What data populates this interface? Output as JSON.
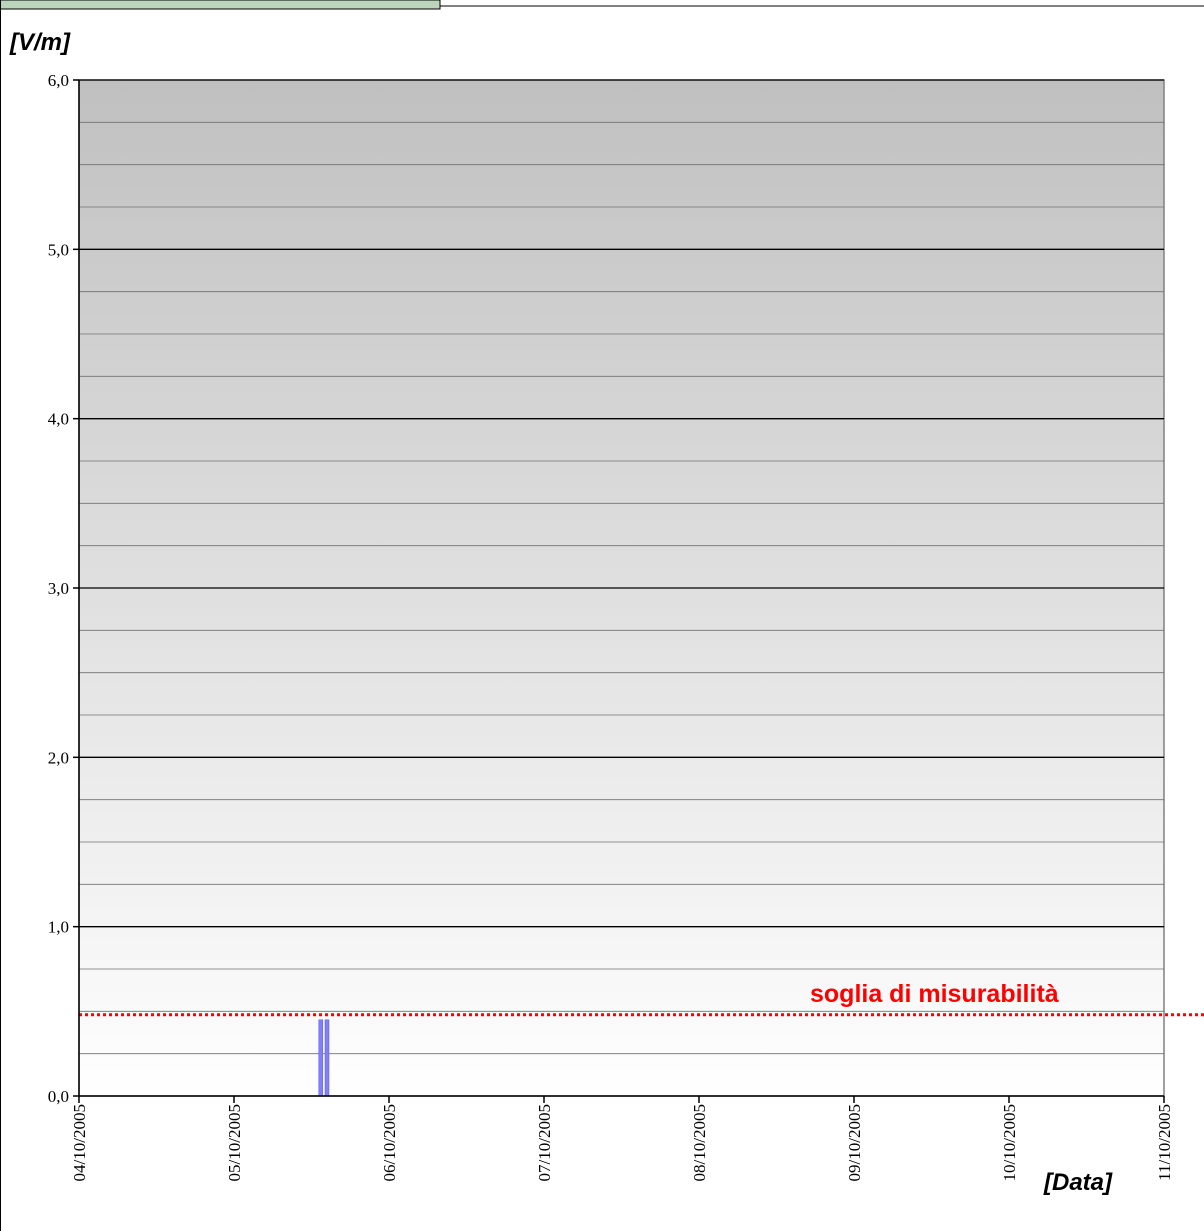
{
  "chart_data": {
    "type": "bar",
    "ylabel": "[V/m]",
    "xlabel": "[Data]",
    "ylim": [
      0,
      6
    ],
    "y_major_step": 1,
    "y_minor_step": 0.25,
    "y_ticks": [
      "0,0",
      "1,0",
      "2,0",
      "3,0",
      "4,0",
      "5,0",
      "6,0"
    ],
    "x_ticks": [
      "04/10/2005",
      "05/10/2005",
      "06/10/2005",
      "07/10/2005",
      "08/10/2005",
      "09/10/2005",
      "10/10/2005",
      "11/10/2005"
    ],
    "x_range": [
      "04/10/2005",
      "11/10/2005"
    ],
    "grid": true,
    "background": "gradient grey (top) to white (bottom)",
    "series": [
      {
        "color": "#8080ff",
        "points": [
          {
            "date": "05/10/2005 13:30",
            "day_fraction": 1.56,
            "value": 0.45
          },
          {
            "date": "05/10/2005 14:30",
            "day_fraction": 1.6,
            "value": 0.45
          }
        ]
      }
    ],
    "threshold": {
      "label": "soglia di misurabilità",
      "value": 0.48,
      "color": "#ff0000",
      "style": "dotted"
    }
  }
}
